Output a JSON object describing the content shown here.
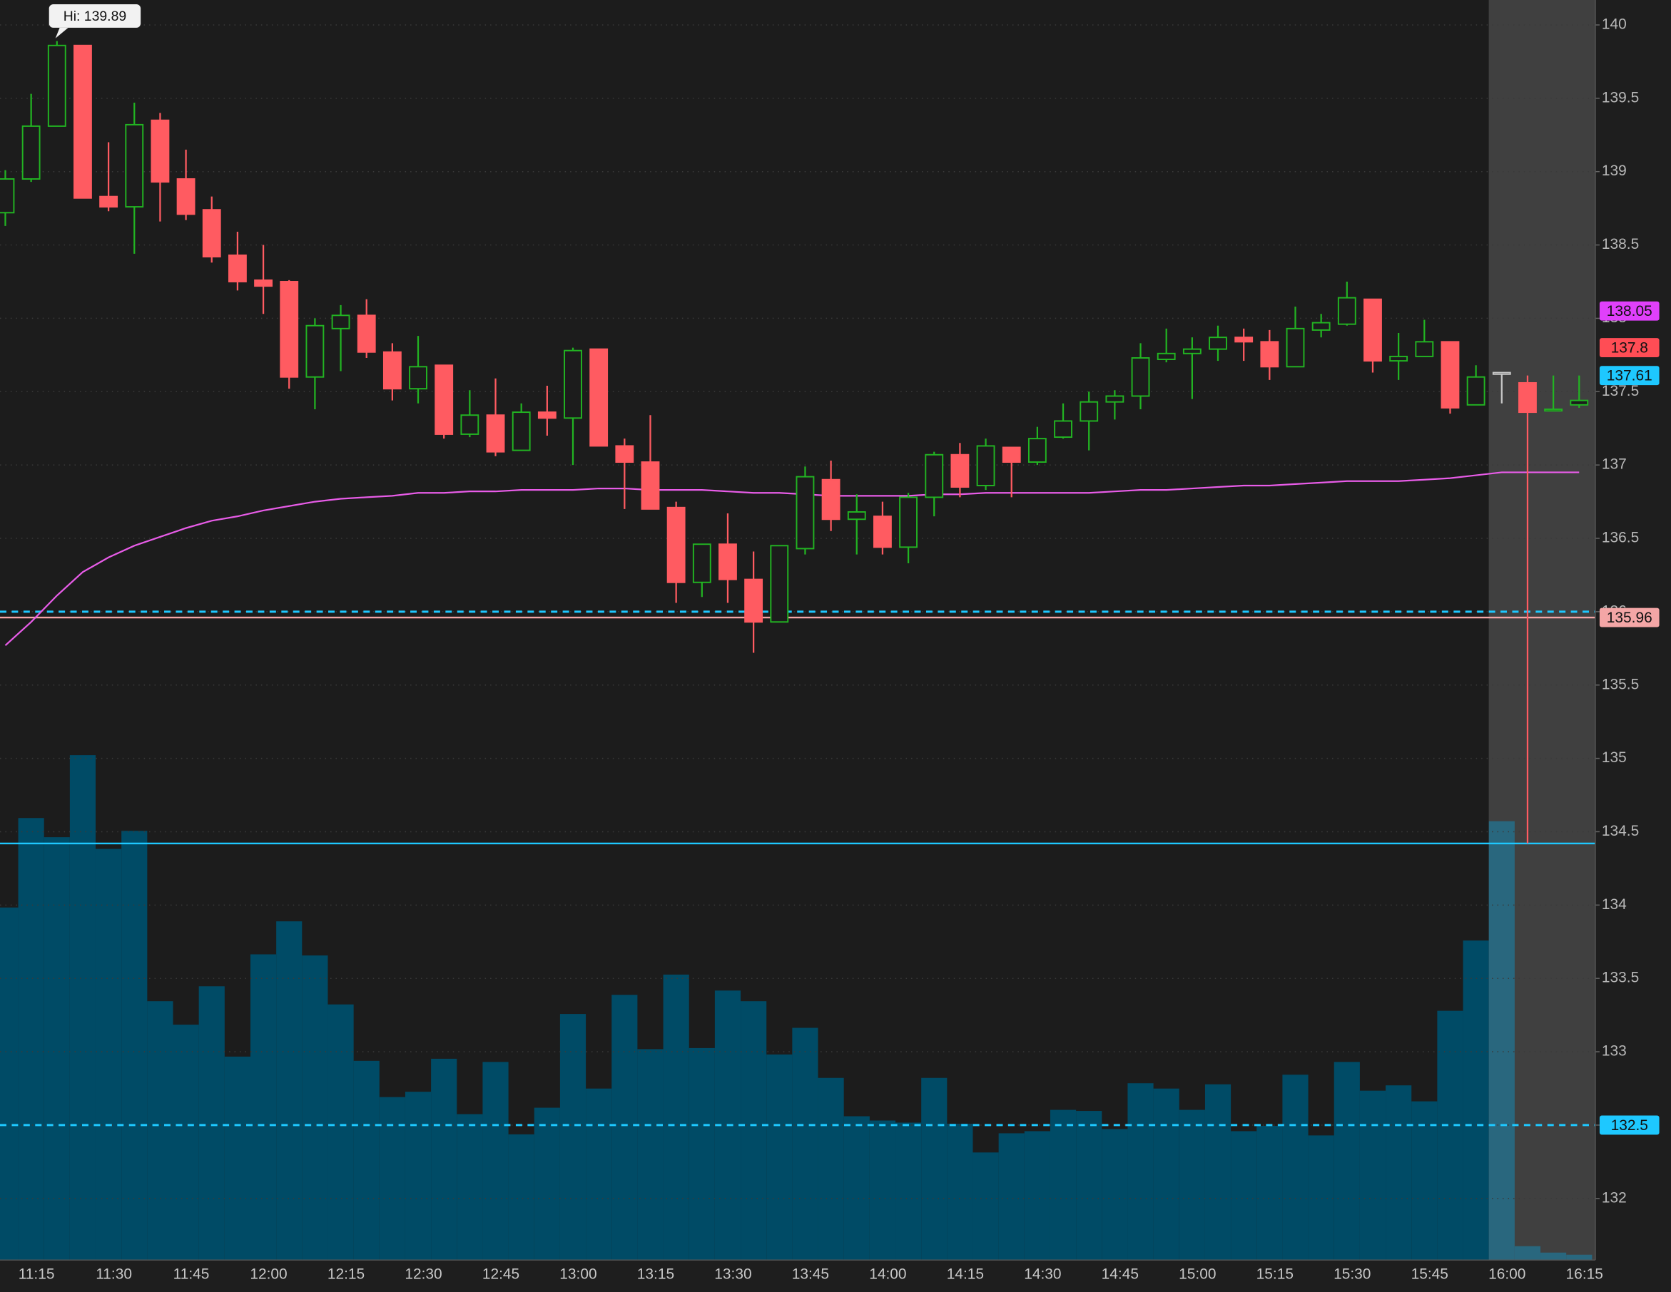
{
  "chart_data": {
    "type": "candlestick",
    "categories": [
      null,
      "11:15",
      null,
      null,
      "11:30",
      null,
      null,
      "11:45",
      null,
      null,
      "12:00",
      null,
      null,
      "12:15",
      null,
      null,
      "12:30",
      null,
      null,
      "12:45",
      null,
      null,
      "13:00",
      null,
      null,
      "13:15",
      null,
      null,
      "13:30",
      null,
      null,
      "13:45",
      null,
      null,
      "14:00",
      null,
      null,
      "14:15",
      null,
      null,
      "14:30",
      null,
      null,
      "14:45",
      null,
      null,
      "15:00",
      null,
      null,
      "15:15",
      null,
      null,
      "15:30",
      null,
      null,
      "15:45",
      null,
      null,
      "16:00",
      null,
      null,
      "16:15"
    ],
    "open": [
      138.72,
      138.95,
      139.31,
      139.86,
      138.83,
      138.76,
      139.35,
      138.95,
      138.74,
      138.43,
      138.26,
      138.25,
      137.6,
      137.93,
      138.02,
      137.77,
      137.52,
      137.68,
      137.21,
      137.34,
      137.1,
      137.36,
      137.32,
      137.79,
      137.13,
      137.02,
      136.71,
      136.2,
      136.46,
      136.22,
      135.93,
      136.43,
      136.9,
      136.63,
      136.65,
      136.44,
      136.78,
      137.07,
      136.86,
      137.12,
      137.02,
      137.19,
      137.3,
      137.43,
      137.47,
      137.72,
      137.76,
      137.79,
      137.87,
      137.84,
      137.67,
      137.92,
      137.96,
      138.13,
      137.71,
      137.74,
      137.84,
      137.41,
      137.63,
      137.56,
      137.37,
      137.41
    ],
    "high": [
      139.01,
      139.53,
      139.89,
      139.86,
      139.2,
      139.47,
      139.4,
      139.15,
      138.83,
      138.59,
      138.5,
      138.26,
      138.0,
      138.09,
      138.13,
      137.83,
      137.88,
      137.68,
      137.51,
      137.59,
      137.42,
      137.54,
      137.8,
      137.79,
      137.18,
      137.34,
      136.75,
      136.46,
      136.67,
      136.41,
      136.45,
      136.99,
      137.03,
      136.8,
      136.75,
      136.81,
      137.09,
      137.15,
      137.18,
      137.12,
      137.26,
      137.42,
      137.5,
      137.51,
      137.83,
      137.93,
      137.87,
      137.95,
      137.93,
      137.92,
      138.08,
      138.03,
      138.25,
      138.13,
      137.9,
      137.99,
      137.84,
      137.68,
      137.63,
      137.61,
      137.61,
      137.61
    ],
    "low": [
      138.63,
      138.93,
      139.31,
      138.82,
      138.73,
      138.44,
      138.66,
      138.67,
      138.38,
      138.19,
      138.03,
      137.52,
      137.38,
      137.64,
      137.73,
      137.44,
      137.42,
      137.18,
      137.19,
      137.06,
      137.1,
      137.2,
      137.0,
      137.13,
      136.7,
      136.7,
      136.06,
      136.1,
      136.06,
      135.72,
      135.93,
      136.39,
      136.55,
      136.39,
      136.39,
      136.33,
      136.65,
      136.78,
      136.83,
      136.78,
      137.0,
      137.18,
      137.1,
      137.31,
      137.38,
      137.7,
      137.45,
      137.71,
      137.71,
      137.58,
      137.67,
      137.87,
      137.95,
      137.63,
      137.58,
      137.74,
      137.35,
      137.41,
      137.42,
      134.42,
      137.37,
      137.39
    ],
    "close": [
      138.95,
      139.31,
      139.86,
      138.82,
      138.76,
      139.32,
      138.93,
      138.71,
      138.42,
      138.25,
      138.22,
      137.6,
      137.95,
      138.02,
      137.77,
      137.52,
      137.67,
      137.21,
      137.34,
      137.09,
      137.36,
      137.32,
      137.78,
      137.13,
      137.02,
      136.7,
      136.2,
      136.46,
      136.22,
      135.93,
      136.45,
      136.92,
      136.63,
      136.68,
      136.44,
      136.78,
      137.07,
      136.85,
      137.13,
      137.02,
      137.18,
      137.3,
      137.43,
      137.47,
      137.73,
      137.76,
      137.79,
      137.87,
      137.84,
      137.67,
      137.93,
      137.97,
      138.14,
      137.71,
      137.74,
      137.84,
      137.39,
      137.6,
      137.63,
      137.36,
      137.38,
      137.44
    ],
    "volume": [
      331,
      415,
      397,
      474,
      386,
      403,
      243,
      221,
      257,
      191,
      287,
      318,
      286,
      240,
      187,
      153,
      158,
      189,
      137,
      186,
      118,
      143,
      231,
      161,
      249,
      198,
      268,
      199,
      253,
      243,
      193,
      218,
      171,
      135,
      131,
      129,
      171,
      128,
      101,
      119,
      121,
      141,
      140,
      123,
      166,
      161,
      141,
      165,
      121,
      126,
      174,
      117,
      186,
      159,
      164,
      149,
      234,
      300,
      412,
      13,
      7,
      5
    ],
    "moving_average": [
      135.77,
      135.93,
      136.11,
      136.27,
      136.37,
      136.45,
      136.51,
      136.57,
      136.62,
      136.65,
      136.69,
      136.72,
      136.75,
      136.77,
      136.78,
      136.79,
      136.81,
      136.81,
      136.82,
      136.82,
      136.83,
      136.83,
      136.83,
      136.84,
      136.84,
      136.83,
      136.83,
      136.83,
      136.82,
      136.81,
      136.81,
      136.8,
      136.79,
      136.79,
      136.79,
      136.79,
      136.8,
      136.8,
      136.81,
      136.81,
      136.81,
      136.81,
      136.81,
      136.82,
      136.83,
      136.83,
      136.84,
      136.85,
      136.86,
      136.86,
      136.87,
      136.88,
      136.89,
      136.89,
      136.89,
      136.9,
      136.91,
      136.93,
      136.95,
      136.95,
      136.95,
      136.95
    ],
    "up_color": "#22b422",
    "down_color": "#ff5b61",
    "flat_color": "#c8c8c8",
    "volume_color": "#004b66",
    "ma_color": "#e85ce8",
    "ylim": [
      131.58,
      140.17
    ],
    "yticks": [
      132,
      132.5,
      133,
      133.5,
      134,
      134.5,
      135,
      135.5,
      136,
      136.5,
      137,
      137.5,
      138,
      138.5,
      139,
      139.5,
      140
    ],
    "grid": true,
    "levels": [
      {
        "value": 136.0,
        "color": "#1ec8ff",
        "style": "dashed"
      },
      {
        "value": 135.96,
        "color": "#f4a6a6",
        "style": "solid",
        "labeled": true
      },
      {
        "value": 134.42,
        "color": "#1ec8ff",
        "style": "solid"
      },
      {
        "value": 132.5,
        "color": "#1ec8ff",
        "style": "dashed",
        "labeled": true
      }
    ],
    "price_markers": [
      {
        "value": 138.05,
        "color": "#e040fb"
      },
      {
        "value": 137.8,
        "color": "#ff4d55"
      },
      {
        "value": 137.61,
        "color": "#1ec8ff"
      }
    ],
    "annotation": "Hi: 139.89"
  }
}
